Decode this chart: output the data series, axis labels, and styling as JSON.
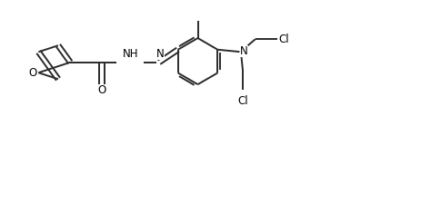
{
  "bg_color": "#ffffff",
  "line_color": "#2a2a2a",
  "line_width": 1.4,
  "font_size": 8.5,
  "figsize": [
    4.63,
    2.35
  ],
  "dpi": 100,
  "xlim": [
    0,
    10
  ],
  "ylim": [
    0,
    5
  ]
}
